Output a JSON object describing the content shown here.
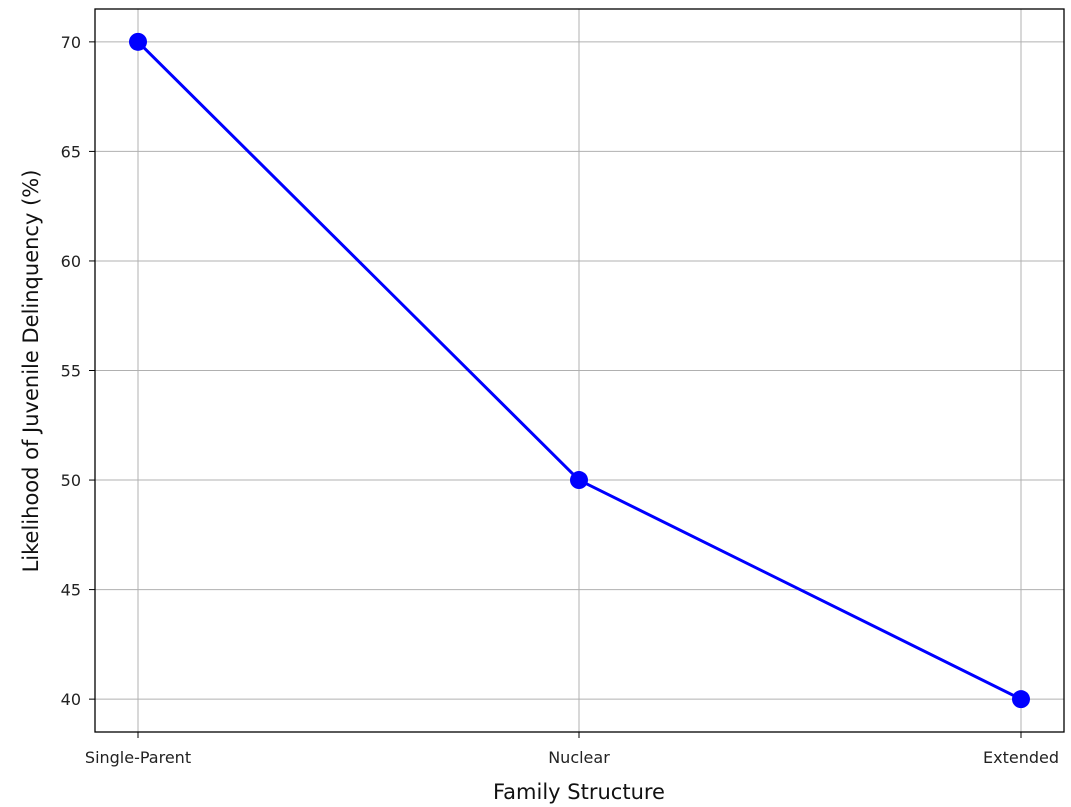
{
  "chart_data": {
    "type": "line",
    "title": "",
    "xlabel": "Family Structure",
    "ylabel": "Likelihood of Juvenile Delinquency (%)",
    "categories": [
      "Single-Parent",
      "Nuclear",
      "Extended"
    ],
    "series": [
      {
        "values": [
          70,
          50,
          40
        ],
        "color": "#0000ff",
        "marker": "circle"
      }
    ],
    "yticks": [
      "40",
      "45",
      "50",
      "55",
      "60",
      "65",
      "70"
    ],
    "ylim": [
      38.5,
      71.5
    ],
    "grid": true
  }
}
